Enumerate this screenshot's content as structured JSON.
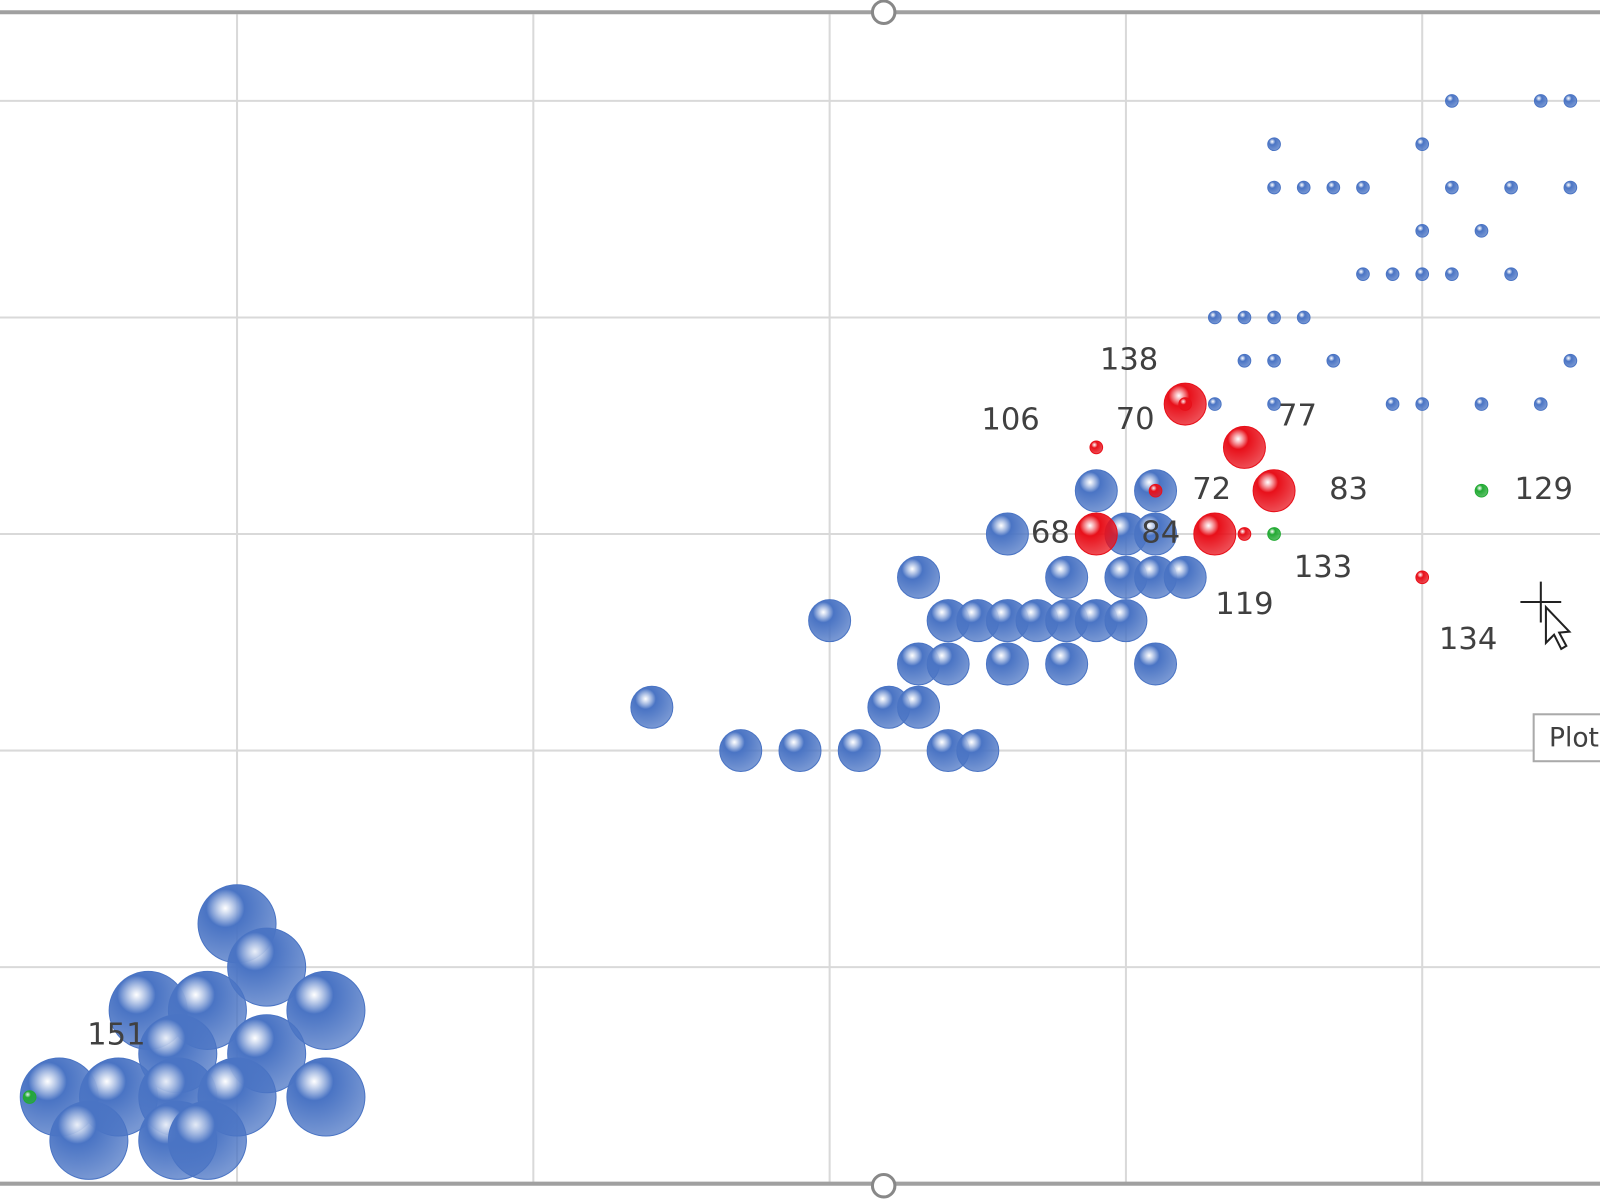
{
  "chart_data": {
    "type": "bubble",
    "grid": true,
    "xlim": [
      0.2,
      5.6
    ],
    "ylim": [
      0,
      2.7
    ],
    "xticks": [
      1,
      2,
      3,
      4,
      5
    ],
    "yticks": [
      0.5,
      1,
      1.5,
      2,
      2.5
    ],
    "tooltip": "Plot",
    "series": [
      {
        "color": "#4a74c4",
        "x": [
          5.1,
          5.4,
          5.5,
          4.5,
          5.0,
          4.5,
          4.6,
          4.7,
          4.8,
          5.1,
          5.3,
          5.5,
          5.0,
          5.2,
          4.8,
          4.9,
          5.0,
          5.1,
          5.3,
          4.3,
          4.4,
          4.5,
          4.6,
          4.4,
          4.5,
          4.7,
          5.5,
          4.3,
          4.5,
          4.9,
          5.0,
          5.2,
          5.4,
          3.9,
          4.1,
          3.6,
          4.0,
          4.1,
          3.3,
          3.8,
          4.0,
          4.1,
          4.2,
          3.0,
          3.4,
          3.5,
          3.6,
          3.7,
          3.8,
          3.9,
          4.0,
          3.3,
          3.4,
          3.6,
          3.8,
          4.1,
          2.4,
          3.2,
          3.3,
          2.7,
          2.9,
          3.1,
          3.4,
          3.5,
          1.0,
          1.1,
          0.7,
          0.9,
          1.3,
          0.8,
          1.1,
          0.4,
          0.6,
          0.8,
          1.0,
          1.3,
          0.5,
          0.8,
          0.9
        ],
        "values": [
          2.5,
          2.5,
          2.5,
          2.4,
          2.4,
          2.3,
          2.3,
          2.3,
          2.3,
          2.3,
          2.3,
          2.3,
          2.2,
          2.2,
          2.1,
          2.1,
          2.1,
          2.1,
          2.1,
          2.0,
          2.0,
          2.0,
          2.0,
          1.9,
          1.9,
          1.9,
          1.9,
          1.8,
          1.8,
          1.8,
          1.8,
          1.8,
          1.8,
          1.6,
          1.6,
          1.5,
          1.5,
          1.5,
          1.4,
          1.4,
          1.4,
          1.4,
          1.4,
          1.3,
          1.3,
          1.3,
          1.3,
          1.3,
          1.3,
          1.3,
          1.3,
          1.2,
          1.2,
          1.2,
          1.2,
          1.2,
          1.1,
          1.1,
          1.1,
          1.0,
          1.0,
          1.0,
          1.0,
          1.0,
          0.6,
          0.5,
          0.4,
          0.4,
          0.4,
          0.3,
          0.3,
          0.2,
          0.2,
          0.2,
          0.2,
          0.2,
          0.1,
          0.1,
          0.1
        ],
        "sizes": [
          1,
          1,
          1,
          1,
          1,
          1,
          1,
          1,
          1,
          1,
          1,
          1,
          1,
          1,
          1,
          1,
          1,
          1,
          1,
          1,
          1,
          1,
          1,
          1,
          1,
          1,
          1,
          1,
          1,
          1,
          1,
          1,
          1,
          11,
          11,
          11,
          11,
          11,
          11,
          11,
          11,
          11,
          11,
          11,
          11,
          11,
          11,
          11,
          11,
          11,
          11,
          11,
          11,
          11,
          11,
          11,
          11,
          11,
          11,
          11,
          11,
          11,
          11,
          11,
          38,
          38,
          38,
          38,
          38,
          38,
          38,
          38,
          38,
          38,
          38,
          38,
          38,
          38,
          38
        ]
      },
      {
        "color": "#e8101a",
        "x": [
          4.2,
          3.9,
          4.2,
          4.4,
          4.1,
          4.5,
          3.9,
          4.3,
          4.4,
          5.0
        ],
        "values": [
          1.8,
          1.7,
          1.8,
          1.7,
          1.6,
          1.6,
          1.5,
          1.5,
          1.5,
          1.4
        ],
        "sizes": [
          11,
          1,
          1,
          11,
          1,
          11,
          11,
          11,
          1,
          1
        ],
        "labels": [
          "138",
          "106",
          "70",
          "77",
          "72",
          "83",
          "68",
          "84",
          "119",
          "134"
        ]
      },
      {
        "color": "#22aa33",
        "x": [
          5.2,
          4.5,
          0.3
        ],
        "values": [
          1.6,
          1.5,
          0.2
        ],
        "sizes": [
          1,
          1,
          1
        ],
        "labels": [
          "129",
          "133",
          "151"
        ]
      }
    ]
  }
}
